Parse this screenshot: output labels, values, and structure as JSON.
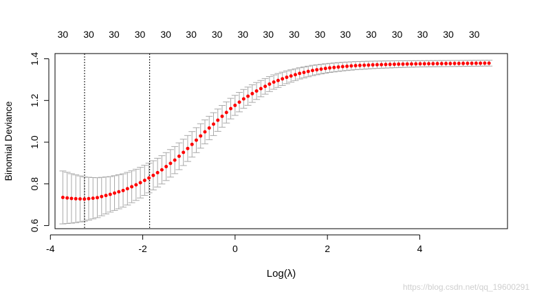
{
  "chart_data": {
    "type": "line",
    "xlabel": "Log(λ)",
    "ylabel": "Binomial Deviance",
    "xlim": [
      -3.9,
      5.9
    ],
    "ylim": [
      0.585,
      1.425
    ],
    "xticks": [
      -4,
      -2,
      0,
      2,
      4
    ],
    "yticks": [
      0.6,
      0.8,
      1.0,
      1.2,
      1.4
    ],
    "xtick_labels": [
      "-4",
      "-2",
      "0",
      "2",
      "4"
    ],
    "ytick_labels": [
      "0.6",
      "0.8",
      "1.0",
      "1.2",
      "1.4"
    ],
    "top_axis": {
      "positions": [
        -3.73,
        -3.17,
        -2.62,
        -2.06,
        -1.5,
        -0.95,
        -0.39,
        0.17,
        0.72,
        1.28,
        1.84,
        2.39,
        2.95,
        3.51,
        4.06,
        4.62,
        5.18
      ],
      "labels": [
        "30",
        "30",
        "30",
        "30",
        "30",
        "30",
        "30",
        "30",
        "30",
        "30",
        "30",
        "30",
        "30",
        "30",
        "30",
        "30",
        "30"
      ]
    },
    "vlines": [
      -3.26,
      -1.85
    ],
    "lambda_range": [
      -3.73,
      5.5
    ],
    "n_points": 100,
    "curve_anchors": {
      "x": [
        -3.73,
        -3.5,
        -3.26,
        -3.0,
        -2.7,
        -2.4,
        -2.1,
        -1.85,
        -1.6,
        -1.3,
        -1.0,
        -0.7,
        -0.4,
        -0.1,
        0.2,
        0.5,
        0.8,
        1.1,
        1.4,
        1.7,
        2.0,
        2.3,
        2.6,
        3.0,
        3.5,
        4.0,
        4.5,
        5.0,
        5.5
      ],
      "y": [
        0.735,
        0.729,
        0.727,
        0.733,
        0.75,
        0.77,
        0.8,
        0.83,
        0.865,
        0.915,
        0.975,
        1.04,
        1.1,
        1.16,
        1.21,
        1.25,
        1.285,
        1.31,
        1.33,
        1.345,
        1.355,
        1.362,
        1.367,
        1.371,
        1.374,
        1.376,
        1.377,
        1.378,
        1.379
      ]
    },
    "error_half_width_anchors": {
      "x": [
        -3.73,
        -3.26,
        -2.7,
        -2.1,
        -1.6,
        -1.0,
        -0.4,
        0.2,
        0.8,
        1.4,
        2.0,
        3.0,
        4.0,
        5.5
      ],
      "y": [
        0.127,
        0.106,
        0.085,
        0.074,
        0.068,
        0.062,
        0.054,
        0.045,
        0.035,
        0.027,
        0.022,
        0.018,
        0.015,
        0.014
      ]
    },
    "colors": {
      "points": "#ff0000",
      "error_bars": "#a8a8a8",
      "frame": "#000000",
      "vlines": "#000000"
    },
    "grid": false
  },
  "watermark": "https://blog.csdn.net/qq_19600291"
}
